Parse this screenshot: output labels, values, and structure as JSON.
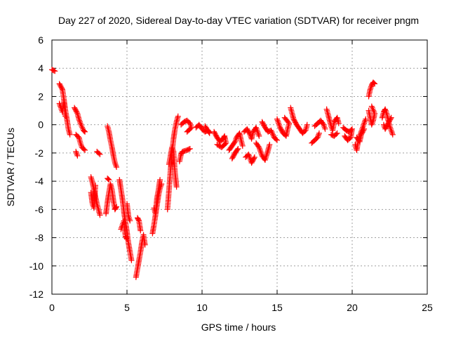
{
  "chart_data": {
    "type": "scatter",
    "title": "Day 227 of 2020, Sidereal Day-to-day VTEC variation (SDTVAR) for receiver pngm",
    "xlabel": "GPS time / hours",
    "ylabel": "SDTVAR / TECUs",
    "xlim": [
      0,
      25
    ],
    "ylim": [
      -12,
      6
    ],
    "x_ticks": [
      0,
      5,
      10,
      15,
      20,
      25
    ],
    "y_ticks": [
      -12,
      -10,
      -8,
      -6,
      -4,
      -2,
      0,
      2,
      4,
      6
    ],
    "x_tick_labels": [
      "0",
      "5",
      "10",
      "15",
      "20",
      "25"
    ],
    "y_tick_labels": [
      "-12",
      "-10",
      "-8",
      "-6",
      "-4",
      "-2",
      "0",
      "2",
      "4",
      "6"
    ],
    "grid": true,
    "marker": "plus",
    "color": "#ff0000",
    "series": [
      {
        "name": "SDTVAR",
        "segments": [
          [
            [
              0.0,
              3.9
            ],
            [
              0.2,
              3.8
            ]
          ],
          [
            [
              0.5,
              2.9
            ],
            [
              0.7,
              2.5
            ],
            [
              0.8,
              1.8
            ],
            [
              0.9,
              1.0
            ],
            [
              1.0,
              0.4
            ],
            [
              1.1,
              -0.3
            ],
            [
              1.2,
              -0.7
            ]
          ],
          [
            [
              0.5,
              1.5
            ],
            [
              0.6,
              1.2
            ],
            [
              0.7,
              0.9
            ],
            [
              0.8,
              1.6
            ],
            [
              0.9,
              0.6
            ]
          ],
          [
            [
              1.5,
              1.2
            ],
            [
              1.7,
              0.8
            ],
            [
              1.8,
              0.4
            ],
            [
              1.9,
              0.1
            ],
            [
              2.1,
              -0.4
            ],
            [
              2.2,
              -0.5
            ]
          ],
          [
            [
              1.6,
              -0.7
            ],
            [
              1.8,
              -0.9
            ],
            [
              1.9,
              -1.3
            ],
            [
              2.0,
              -1.6
            ],
            [
              2.2,
              -1.8
            ]
          ],
          [
            [
              1.6,
              -1.9
            ],
            [
              1.7,
              -2.2
            ]
          ],
          [
            [
              2.6,
              -3.7
            ],
            [
              2.7,
              -4.1
            ],
            [
              2.8,
              -4.6
            ],
            [
              2.9,
              -5.1
            ],
            [
              3.0,
              -5.6
            ],
            [
              3.1,
              -6.0
            ],
            [
              3.2,
              -6.4
            ]
          ],
          [
            [
              2.6,
              -4.8
            ],
            [
              2.7,
              -5.6
            ],
            [
              2.8,
              -5.9
            ],
            [
              2.9,
              -4.3
            ]
          ],
          [
            [
              3.0,
              -1.9
            ],
            [
              3.2,
              -2.1
            ]
          ],
          [
            [
              3.6,
              -6.3
            ],
            [
              3.7,
              -5.5
            ],
            [
              3.8,
              -4.8
            ],
            [
              3.9,
              -4.2
            ],
            [
              4.0,
              -4.6
            ],
            [
              4.1,
              -5.4
            ],
            [
              4.2,
              -6.0
            ],
            [
              4.3,
              -5.8
            ]
          ],
          [
            [
              3.7,
              -3.8
            ],
            [
              3.8,
              -3.9
            ]
          ],
          [
            [
              3.7,
              -0.1
            ],
            [
              3.8,
              -0.5
            ],
            [
              3.9,
              -1.1
            ],
            [
              4.0,
              -1.6
            ],
            [
              4.1,
              -2.2
            ],
            [
              4.2,
              -2.7
            ],
            [
              4.3,
              -3.0
            ]
          ],
          [
            [
              4.5,
              -3.9
            ],
            [
              4.6,
              -4.6
            ],
            [
              4.7,
              -5.3
            ],
            [
              4.8,
              -6.2
            ],
            [
              4.9,
              -6.9
            ],
            [
              5.0,
              -7.6
            ],
            [
              5.1,
              -8.4
            ],
            [
              5.2,
              -9.0
            ],
            [
              5.3,
              -9.6
            ]
          ],
          [
            [
              4.6,
              -7.4
            ],
            [
              4.7,
              -7.1
            ],
            [
              4.8,
              -6.8
            ],
            [
              4.9,
              -7.9
            ],
            [
              5.0,
              -8.1
            ]
          ],
          [
            [
              5.0,
              -5.6
            ],
            [
              5.1,
              -6.5
            ],
            [
              5.2,
              -6.8
            ]
          ],
          [
            [
              5.6,
              -10.8
            ],
            [
              5.7,
              -10.2
            ],
            [
              5.8,
              -9.6
            ],
            [
              5.9,
              -9.0
            ],
            [
              6.0,
              -8.3
            ],
            [
              6.1,
              -7.8
            ],
            [
              6.2,
              -8.5
            ]
          ],
          [
            [
              5.7,
              -6.6
            ],
            [
              5.8,
              -6.8
            ],
            [
              5.9,
              -7.5
            ]
          ],
          [
            [
              6.7,
              -7.7
            ],
            [
              6.8,
              -7.1
            ],
            [
              6.9,
              -6.4
            ],
            [
              7.0,
              -5.7
            ],
            [
              7.1,
              -5.0
            ],
            [
              7.2,
              -4.5
            ],
            [
              7.3,
              -4.2
            ]
          ],
          [
            [
              6.8,
              -5.9
            ],
            [
              6.9,
              -6.3
            ],
            [
              7.0,
              -5.2
            ],
            [
              7.1,
              -4.6
            ],
            [
              7.2,
              -3.9
            ]
          ],
          [
            [
              7.7,
              -6.0
            ],
            [
              7.8,
              -4.6
            ],
            [
              7.9,
              -3.2
            ],
            [
              8.0,
              -2.0
            ],
            [
              8.1,
              -1.0
            ],
            [
              8.2,
              -0.3
            ],
            [
              8.3,
              0.2
            ],
            [
              8.4,
              0.6
            ]
          ],
          [
            [
              7.8,
              -2.8
            ],
            [
              7.9,
              -2.2
            ],
            [
              8.0,
              -1.6
            ],
            [
              8.1,
              -1.9
            ],
            [
              8.2,
              -3.4
            ],
            [
              8.3,
              -4.4
            ]
          ],
          [
            [
              8.5,
              -2.6
            ],
            [
              8.6,
              -2.1
            ],
            [
              8.7,
              -1.9
            ],
            [
              9.0,
              -1.8
            ],
            [
              9.2,
              -1.7
            ]
          ],
          [
            [
              8.6,
              0.0
            ],
            [
              8.8,
              0.2
            ],
            [
              9.0,
              0.3
            ],
            [
              9.2,
              0.1
            ],
            [
              9.3,
              -0.2
            ],
            [
              9.0,
              -0.5
            ]
          ],
          [
            [
              9.6,
              -0.2
            ],
            [
              9.8,
              0.0
            ],
            [
              10.0,
              -0.3
            ],
            [
              10.2,
              -0.5
            ],
            [
              10.4,
              -0.4
            ],
            [
              10.5,
              -0.6
            ],
            [
              10.2,
              -0.1
            ]
          ],
          [
            [
              10.8,
              -0.5
            ],
            [
              11.0,
              -0.9
            ],
            [
              11.2,
              -1.2
            ],
            [
              11.4,
              -1.0
            ],
            [
              11.5,
              -0.8
            ],
            [
              11.6,
              -1.3
            ],
            [
              11.3,
              -1.6
            ],
            [
              11.0,
              -1.4
            ]
          ],
          [
            [
              11.8,
              -1.8
            ],
            [
              12.0,
              -1.5
            ],
            [
              12.2,
              -1.2
            ],
            [
              12.3,
              -0.9
            ],
            [
              12.5,
              -0.6
            ],
            [
              12.6,
              -1.1
            ],
            [
              12.7,
              -1.5
            ]
          ],
          [
            [
              12.0,
              -2.4
            ],
            [
              12.2,
              -2.0
            ],
            [
              12.4,
              -1.7
            ]
          ],
          [
            [
              12.8,
              -0.5
            ],
            [
              13.0,
              -0.3
            ],
            [
              13.2,
              -0.7
            ],
            [
              13.3,
              -1.0
            ],
            [
              13.4,
              -0.5
            ],
            [
              13.6,
              -0.2
            ],
            [
              13.8,
              -0.8
            ]
          ],
          [
            [
              12.9,
              -2.3
            ],
            [
              13.1,
              -2.1
            ],
            [
              13.2,
              -2.4
            ],
            [
              13.3,
              -2.7
            ],
            [
              13.5,
              -2.3
            ]
          ],
          [
            [
              13.6,
              -1.3
            ],
            [
              13.8,
              -1.6
            ],
            [
              14.0,
              -2.2
            ],
            [
              14.2,
              -2.5
            ],
            [
              14.4,
              -1.8
            ],
            [
              14.5,
              -1.4
            ]
          ],
          [
            [
              14.0,
              0.2
            ],
            [
              14.2,
              -0.2
            ],
            [
              14.4,
              -0.5
            ],
            [
              14.6,
              -0.4
            ],
            [
              14.8,
              -0.9
            ],
            [
              15.0,
              -1.1
            ]
          ],
          [
            [
              15.0,
              0.4
            ],
            [
              15.2,
              -0.2
            ],
            [
              15.4,
              -0.6
            ],
            [
              15.6,
              -0.8
            ],
            [
              15.7,
              -0.3
            ],
            [
              15.8,
              0.1
            ],
            [
              15.5,
              0.5
            ]
          ],
          [
            [
              15.9,
              1.2
            ],
            [
              16.0,
              0.8
            ],
            [
              16.1,
              0.4
            ],
            [
              16.3,
              0.0
            ],
            [
              16.5,
              -0.3
            ],
            [
              16.7,
              -0.6
            ],
            [
              16.9,
              -0.4
            ],
            [
              17.0,
              0.0
            ]
          ],
          [
            [
              17.3,
              -1.3
            ],
            [
              17.5,
              -1.1
            ],
            [
              17.7,
              -0.9
            ],
            [
              17.8,
              -0.6
            ]
          ],
          [
            [
              17.5,
              -0.1
            ],
            [
              17.7,
              0.1
            ],
            [
              17.9,
              0.3
            ],
            [
              18.1,
              0.0
            ],
            [
              18.2,
              -0.3
            ]
          ],
          [
            [
              18.3,
              1.1
            ],
            [
              18.4,
              0.7
            ],
            [
              18.5,
              0.3
            ],
            [
              18.6,
              -0.1
            ],
            [
              18.7,
              -0.4
            ],
            [
              18.8,
              0.2
            ],
            [
              19.0,
              0.5
            ],
            [
              19.1,
              0.1
            ]
          ],
          [
            [
              18.6,
              -0.7
            ],
            [
              18.8,
              -0.8
            ],
            [
              19.0,
              -0.6
            ]
          ],
          [
            [
              19.4,
              -0.2
            ],
            [
              19.6,
              -0.4
            ],
            [
              19.8,
              -0.5
            ],
            [
              20.0,
              -0.3
            ],
            [
              19.9,
              -0.9
            ],
            [
              19.7,
              -1.1
            ],
            [
              19.5,
              -0.8
            ]
          ],
          [
            [
              20.2,
              -1.4
            ],
            [
              20.3,
              -1.8
            ],
            [
              20.4,
              -1.2
            ],
            [
              20.5,
              -0.8
            ],
            [
              20.6,
              -0.5
            ],
            [
              20.7,
              -0.2
            ],
            [
              20.8,
              0.1
            ],
            [
              20.9,
              0.4
            ]
          ],
          [
            [
              20.3,
              -0.9
            ],
            [
              20.5,
              -1.2
            ],
            [
              20.6,
              -0.7
            ],
            [
              20.8,
              -0.3
            ]
          ],
          [
            [
              21.1,
              1.0
            ],
            [
              21.2,
              0.5
            ],
            [
              21.3,
              0.0
            ],
            [
              21.4,
              0.3
            ],
            [
              21.5,
              0.8
            ],
            [
              21.3,
              1.3
            ]
          ],
          [
            [
              21.1,
              2.0
            ],
            [
              21.2,
              2.5
            ],
            [
              21.3,
              2.8
            ],
            [
              21.4,
              3.0
            ],
            [
              21.5,
              2.9
            ]
          ],
          [
            [
              22.0,
              0.5
            ],
            [
              22.1,
              0.9
            ],
            [
              22.2,
              1.1
            ],
            [
              22.3,
              0.8
            ],
            [
              22.4,
              0.3
            ],
            [
              22.5,
              -0.1
            ],
            [
              22.6,
              -0.4
            ],
            [
              22.7,
              -0.7
            ]
          ],
          [
            [
              22.1,
              0.0
            ],
            [
              22.2,
              -0.3
            ],
            [
              22.4,
              0.1
            ],
            [
              22.6,
              0.5
            ]
          ]
        ]
      }
    ]
  }
}
